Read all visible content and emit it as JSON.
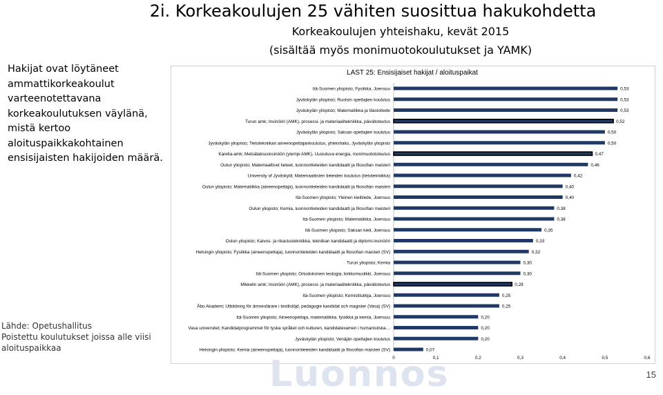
{
  "slide": {
    "title": "2i. Korkeakoulujen 25 vähiten suosittua hakukohdetta",
    "subtitle_line1": "Korkeakoulujen yhteishaku, kevät 2015",
    "subtitle_line2": "(sisältää myös monimuotokoulutukset ja YAMK)",
    "left_text": "Hakijat ovat löytäneet ammattikorkeakoulut varteenotettavana korkeakoulutuksen väylänä, mistä kertoo aloituspaikkakohtainen ensisijaisten hakijoiden määrä.",
    "source_line1": "Lähde: Opetushallitus",
    "source_line2": "Poistettu koulutukset joissa alle viisi",
    "source_line3": "aloituspaikkaa",
    "watermark": "Luonnos",
    "page_number": "15"
  },
  "chart_data": {
    "type": "bar",
    "orientation": "horizontal",
    "title": "LAST 25: Ensisijaiset hakijat / aloituspaikat",
    "xlim": [
      0,
      0.6
    ],
    "x_ticks": [
      "0",
      "0,1",
      "0,2",
      "0,3",
      "0,4",
      "0,5",
      "0,6"
    ],
    "bar_color": "#1f3864",
    "highlight_border_color": "#000000",
    "categories": [
      "Itä-Suomen yliopisto; Fysiikka, Joensuu",
      "Jyväskylän yliopisto; Ruotsin opettajien koulutus",
      "Jyväskylän yliopisto; Matematiikka ja tilastotiede",
      "Turun amk; Insinööri (AMK), prosessi- ja materiaalitekniikka, päivätoteutus",
      "Jyväskylän yliopisto; Saksan opettajien koulutus",
      "Jyväskylän yliopisto; Tietotekniikan aineenopettajankoulutus, yhteishaku, Jyväskylän yliopisto",
      "Karelia-amk; Metsätalousinsinööri (ylempi AMK), Uusiutuva energia, monimuotototeutus",
      "Oulun yliopisto; Matemaattiset tieteet, luonnontieteiden kandidaatti ja filosofian maisteri",
      "University of Jyväskylä; Matemaattisten tieteiden koulutus (tietotekniikka)",
      "Oulun yliopisto; Matematiikka (aineenopettaja), luonnontieteiden kandidaatti ja filosofian maisteri",
      "Itä-Suomen yliopisto; Yleinen kielitiede, Joensuu",
      "Oulun yliopisto; Kemia, luonnontieteiden kandidaatti ja filosofian maisteri",
      "Itä-Suomen yliopisto; Matematiikka, Joensuu",
      "Itä-Suomen yliopisto; Saksan kieli, Joensuu",
      "Oulun yliopisto; Kaivos- ja rikastustekniikka, tekniikan kandidaatti ja diplomi-insinööri",
      "Helsingin yliopisto; Fysiikka (aineenopettaja), luonnontieteiden kandidaatti ja filosofian maisteri (SV)",
      "Turun yliopisto; Kemia",
      "Itä-Suomen yliopisto; Ortodoksinen teologia, kirkkomusiikki, Joensuu",
      "Mikkelin amk; Insinööri (AMK), prosessi- ja materiaalitekniikka, päivätoteutus",
      "Itä-Suomen yliopisto; Kemistitutkija, Joensuu",
      "Åbo Akademi; Utbildning för ämneslärare i textilslöjd, pedagogie kandidat och magister (Vasa) (SV)",
      "Itä-Suomen yliopisto; Aineenopettaja, matematiikka, fysiikka ja kemia, Joensuu",
      "Vasa universitet; Kandidatprogrammet för tyska språket och kulturen, kandidatexamen i humanistiska…",
      "Jyväskylän yliopisto; Venäjän opettajien koulutus",
      "Helsingin yliopisto; Kemia (aineenopettaja), luonnontieteiden kandidaatti ja filosofian maisteri (SV)"
    ],
    "values": [
      0.53,
      0.53,
      0.53,
      0.52,
      0.5,
      0.5,
      0.47,
      0.46,
      0.42,
      0.4,
      0.4,
      0.38,
      0.38,
      0.35,
      0.33,
      0.32,
      0.3,
      0.3,
      0.28,
      0.25,
      0.25,
      0.2,
      0.2,
      0.2,
      0.07
    ],
    "value_labels": [
      "0,53",
      "0,53",
      "0,53",
      "0,52",
      "0,50",
      "0,50",
      "0,47",
      "0,46",
      "0,42",
      "0,40",
      "0,40",
      "0,38",
      "0,38",
      "0,35",
      "0,33",
      "0,32",
      "0,30",
      "0,30",
      "0,28",
      "0,25",
      "0,25",
      "0,20",
      "0,20",
      "0,20",
      "0,07"
    ],
    "highlighted": [
      false,
      false,
      false,
      true,
      false,
      false,
      true,
      false,
      false,
      false,
      false,
      false,
      false,
      false,
      false,
      false,
      false,
      false,
      true,
      false,
      false,
      false,
      false,
      false,
      false
    ]
  }
}
